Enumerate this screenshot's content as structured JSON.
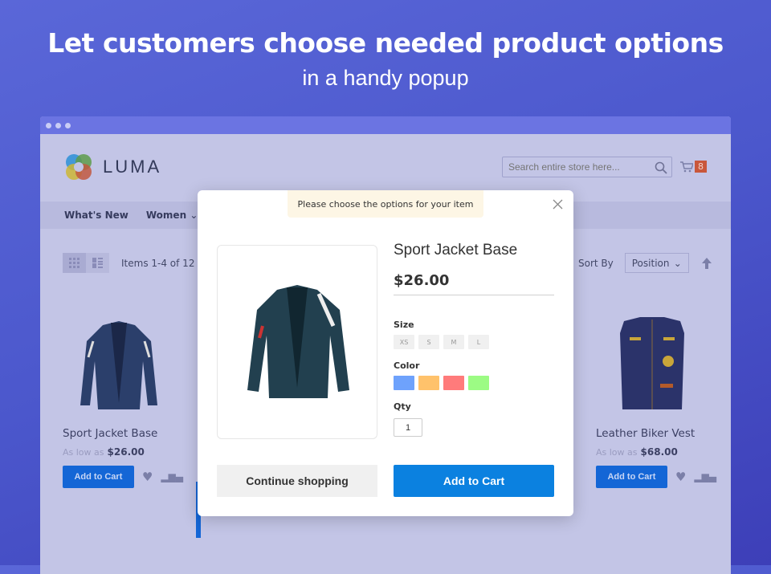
{
  "hero": {
    "title": "Let customers choose needed product options",
    "subtitle": "in a handy popup"
  },
  "store": {
    "logo_text": "LUMA",
    "search_placeholder": "Search entire store here...",
    "cart_count": "8",
    "nav": [
      "What's New",
      "Women"
    ],
    "toolbar": {
      "items": "Items 1-4 of 12",
      "sort_label": "Sort By",
      "sort_value": "Position"
    },
    "products": [
      {
        "name": "Sport Jacket Base",
        "price_prefix": "As low as",
        "price": "$26.00",
        "button": "Add to Cart"
      },
      {
        "name": "Leather Biker Vest",
        "price_prefix": "As low as",
        "price": "$68.00",
        "button": "Add to Cart"
      }
    ]
  },
  "modal": {
    "notice": "Please choose the options for your item",
    "title": "Sport Jacket Base",
    "price": "$26.00",
    "size_label": "Size",
    "sizes": [
      "XS",
      "S",
      "M",
      "L"
    ],
    "color_label": "Color",
    "colors": [
      "#6ea2fc",
      "#ffc26b",
      "#ff7b7b",
      "#9cfb84"
    ],
    "qty_label": "Qty",
    "qty": "1",
    "continue": "Continue shopping",
    "add": "Add to Cart"
  }
}
